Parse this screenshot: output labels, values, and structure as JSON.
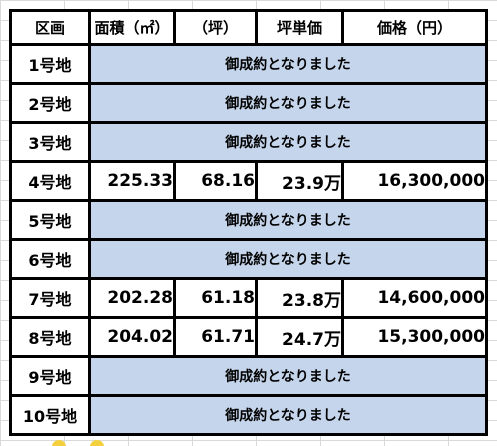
{
  "table": {
    "headers": [
      "区画",
      "面積（㎡）",
      "（坪）",
      "坪単価",
      "価格（円）"
    ],
    "rows": [
      {
        "lot": "1号地",
        "status": "御成約となりました"
      },
      {
        "lot": "2号地",
        "status": "御成約となりました"
      },
      {
        "lot": "3号地",
        "status": "御成約となりました"
      },
      {
        "lot": "4号地",
        "area_sqm": "225.33",
        "area_tsubo": "68.16",
        "unit_price": "23.9万",
        "price": "16,300,000"
      },
      {
        "lot": "5号地",
        "status": "御成約となりました"
      },
      {
        "lot": "6号地",
        "status": "御成約となりました"
      },
      {
        "lot": "7号地",
        "area_sqm": "202.28",
        "area_tsubo": "61.18",
        "unit_price": "23.8万",
        "price": "14,600,000"
      },
      {
        "lot": "8号地",
        "area_sqm": "204.02",
        "area_tsubo": "61.71",
        "unit_price": "24.7万",
        "price": "15,300,000"
      },
      {
        "lot": "9号地",
        "status": "御成約となりました"
      },
      {
        "lot": "10号地",
        "status": "御成約となりました"
      }
    ]
  },
  "colors": {
    "sold_fill": "#c5d5eb",
    "sold_border": "#8eaadb",
    "border": "#000000",
    "gridline": "#d9d9d9"
  }
}
